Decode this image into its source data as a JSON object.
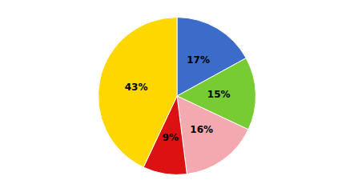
{
  "chart_data": {
    "type": "pie",
    "values": [
      17,
      15,
      16,
      9,
      43
    ],
    "value_labels": [
      "17%",
      "15%",
      "16%",
      "9%",
      "43%"
    ],
    "colors": [
      "#3B6CC9",
      "#77CC33",
      "#F4A8B0",
      "#DD1111",
      "#FFD700"
    ],
    "data_labels": true
  }
}
